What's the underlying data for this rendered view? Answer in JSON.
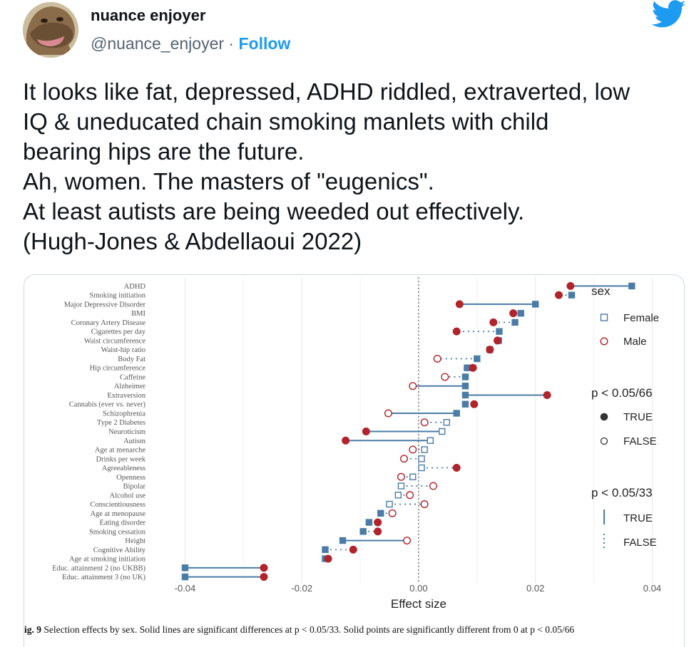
{
  "user": {
    "name": "nuance enjoyer",
    "handle": "@nuance_enjoyer",
    "separator": " · ",
    "follow_label": "Follow"
  },
  "tweet": {
    "lines": [
      "It looks like fat, depressed, ADHD riddled, extraverted, low",
      "IQ & uneducated chain smoking manlets with child",
      "bearing hips are the future.",
      "Ah, women. The masters of \"eugenics\".",
      "At least autists are being weeded out effectively.",
      "(Hugh-Jones & Abdellaoui 2022)"
    ]
  },
  "colors": {
    "twitter_blue": "#1d9bf0",
    "female": "#4a7ca6",
    "male": "#b0242c",
    "zero_line": "#666666"
  },
  "chart_data": {
    "type": "scatter",
    "xlabel": "Effect size",
    "xlim": [
      -0.0425,
      0.043
    ],
    "xticks": [
      -0.04,
      -0.02,
      0.0,
      0.02,
      0.04
    ],
    "xtick_labels": [
      "-0.04",
      "-0.02",
      "0.00",
      "0.02",
      "0.04"
    ],
    "grid": true,
    "legend": {
      "position": "right",
      "sex_title": "sex",
      "female_label": "Female",
      "male_label": "Male",
      "points_title": "p < 0.05/66",
      "lines_title": "p < 0.05/33",
      "true_label": "TRUE",
      "false_label": "FALSE"
    },
    "traits": [
      {
        "label": "ADHD",
        "female": 0.0365,
        "male": 0.026,
        "female_sig": true,
        "male_sig": true,
        "line_sig": true
      },
      {
        "label": "Smoking initiation",
        "female": 0.0262,
        "male": 0.024,
        "female_sig": true,
        "male_sig": true,
        "line_sig": false
      },
      {
        "label": "Major Depressive Disorder",
        "female": 0.02,
        "male": 0.007,
        "female_sig": true,
        "male_sig": true,
        "line_sig": true
      },
      {
        "label": "BMI",
        "female": 0.0175,
        "male": 0.0162,
        "female_sig": true,
        "male_sig": true,
        "line_sig": false
      },
      {
        "label": "Coronary Artery Disease",
        "female": 0.0165,
        "male": 0.0128,
        "female_sig": true,
        "male_sig": true,
        "line_sig": false
      },
      {
        "label": "Cigarettes per day",
        "female": 0.0138,
        "male": 0.0065,
        "female_sig": true,
        "male_sig": true,
        "line_sig": false
      },
      {
        "label": "Waist circumference",
        "female": 0.0137,
        "male": 0.0135,
        "female_sig": true,
        "male_sig": true,
        "line_sig": false
      },
      {
        "label": "Waist-hip ratio",
        "female": 0.0122,
        "male": 0.0122,
        "female_sig": true,
        "male_sig": true,
        "line_sig": false
      },
      {
        "label": "Body Fat",
        "female": 0.01,
        "male": 0.0032,
        "female_sig": true,
        "male_sig": false,
        "line_sig": false
      },
      {
        "label": "Hip circumference",
        "female": 0.0083,
        "male": 0.0093,
        "female_sig": true,
        "male_sig": true,
        "line_sig": false
      },
      {
        "label": "Caffeine",
        "female": 0.008,
        "male": 0.0045,
        "female_sig": true,
        "male_sig": false,
        "line_sig": false
      },
      {
        "label": "Alzheimer",
        "female": 0.008,
        "male": -0.001,
        "female_sig": true,
        "male_sig": false,
        "line_sig": true
      },
      {
        "label": "Extraversion",
        "female": 0.008,
        "male": 0.022,
        "female_sig": true,
        "male_sig": true,
        "line_sig": true
      },
      {
        "label": "Cannabis (ever vs. never)",
        "female": 0.008,
        "male": 0.0095,
        "female_sig": true,
        "male_sig": true,
        "line_sig": false
      },
      {
        "label": "Schizophrenia",
        "female": 0.0065,
        "male": -0.0052,
        "female_sig": true,
        "male_sig": false,
        "line_sig": true
      },
      {
        "label": "Type 2 Diabetes",
        "female": 0.0048,
        "male": 0.001,
        "female_sig": false,
        "male_sig": false,
        "line_sig": false
      },
      {
        "label": "Neuroticism",
        "female": 0.004,
        "male": -0.009,
        "female_sig": false,
        "male_sig": true,
        "line_sig": true
      },
      {
        "label": "Autism",
        "female": 0.002,
        "male": -0.0125,
        "female_sig": false,
        "male_sig": true,
        "line_sig": true
      },
      {
        "label": "Age at menarche",
        "female": 0.001,
        "male": -0.001,
        "female_sig": false,
        "male_sig": false,
        "line_sig": false
      },
      {
        "label": "Drinks per week",
        "female": 0.0005,
        "male": -0.0025,
        "female_sig": false,
        "male_sig": false,
        "line_sig": false
      },
      {
        "label": "Agreeableness",
        "female": 0.0005,
        "male": 0.0065,
        "female_sig": false,
        "male_sig": true,
        "line_sig": false
      },
      {
        "label": "Openness",
        "female": -0.001,
        "male": -0.003,
        "female_sig": false,
        "male_sig": false,
        "line_sig": false
      },
      {
        "label": "Bipolar",
        "female": -0.003,
        "male": 0.0025,
        "female_sig": false,
        "male_sig": false,
        "line_sig": false
      },
      {
        "label": "Alcohol use",
        "female": -0.0035,
        "male": -0.0015,
        "female_sig": false,
        "male_sig": false,
        "line_sig": false
      },
      {
        "label": "Conscientiousness",
        "female": -0.005,
        "male": 0.001,
        "female_sig": false,
        "male_sig": false,
        "line_sig": false
      },
      {
        "label": "Age at menopause",
        "female": -0.0065,
        "male": -0.0045,
        "female_sig": true,
        "male_sig": false,
        "line_sig": false
      },
      {
        "label": "Eating disorder",
        "female": -0.0085,
        "male": -0.007,
        "female_sig": true,
        "male_sig": true,
        "line_sig": false
      },
      {
        "label": "Smoking cessation",
        "female": -0.0095,
        "male": -0.007,
        "female_sig": true,
        "male_sig": true,
        "line_sig": false
      },
      {
        "label": "Height",
        "female": -0.013,
        "male": -0.002,
        "female_sig": true,
        "male_sig": false,
        "line_sig": true
      },
      {
        "label": "Cognitive Ability",
        "female": -0.016,
        "male": -0.0112,
        "female_sig": true,
        "male_sig": true,
        "line_sig": false
      },
      {
        "label": "Age at smoking initiation",
        "female": -0.016,
        "male": -0.0155,
        "female_sig": true,
        "male_sig": true,
        "line_sig": false
      },
      {
        "label": "Educ. attainment 2 (no UKBB)",
        "female": -0.04,
        "male": -0.0265,
        "female_sig": true,
        "male_sig": true,
        "line_sig": true
      },
      {
        "label": "Educ. attainment 3 (no UK)",
        "female": -0.04,
        "male": -0.0265,
        "female_sig": true,
        "male_sig": true,
        "line_sig": true
      }
    ]
  },
  "caption": {
    "fig_label": "ig. 9",
    "text": "  Selection effects by sex. Solid lines are significant differences at p < 0.05/33. Solid points are significantly different from 0 at p < 0.05/66"
  }
}
